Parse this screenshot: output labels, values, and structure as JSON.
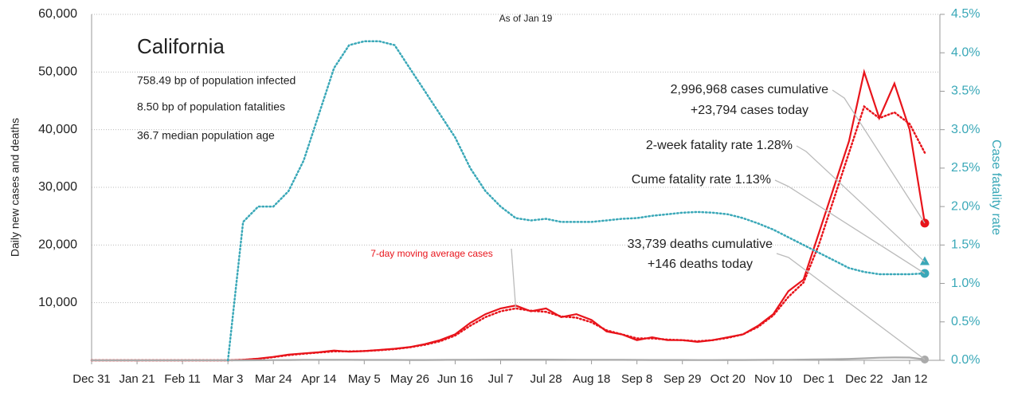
{
  "chart_data": {
    "type": "line",
    "title": "California",
    "subtitle": "As of Jan 19",
    "facts": [
      "758.49 bp of population infected",
      "8.50 bp of population fatalities",
      "36.7 median population age"
    ],
    "ylabel": "Daily new cases and deaths",
    "y2label": "Case fatality rate",
    "categories": [
      "Dec 31",
      null,
      null,
      "Jan 21",
      null,
      null,
      "Feb 11",
      null,
      null,
      "Mar 3",
      null,
      null,
      "Mar 24",
      null,
      null,
      "Apr 14",
      null,
      null,
      "May 5",
      null,
      null,
      "May 26",
      null,
      null,
      "Jun 16",
      null,
      null,
      "Jul 7",
      null,
      null,
      "Jul 28",
      null,
      null,
      "Aug 18",
      null,
      null,
      "Sep 8",
      null,
      null,
      "Sep 29",
      null,
      null,
      "Oct 20",
      null,
      null,
      "Nov 10",
      null,
      null,
      "Dec 1",
      null,
      null,
      "Dec 22",
      null,
      null,
      "Jan 12",
      null
    ],
    "series": [
      {
        "name": "Daily new cases",
        "color": "#e8141b",
        "style": "solid",
        "values": [
          0,
          0,
          0,
          0,
          0,
          0,
          0,
          0,
          0,
          0,
          100,
          300,
          600,
          1000,
          1200,
          1400,
          1700,
          1500,
          1600,
          1800,
          2000,
          2300,
          2800,
          3500,
          4500,
          6500,
          8000,
          9000,
          9500,
          8500,
          9000,
          7500,
          8000,
          7000,
          5000,
          4500,
          3500,
          4000,
          3500,
          3500,
          3200,
          3500,
          4000,
          4500,
          6000,
          8000,
          12000,
          14000,
          22000,
          30000,
          38000,
          50000,
          42000,
          48000,
          40000,
          23794
        ]
      },
      {
        "name": "7-day moving average cases",
        "color": "#e8141b",
        "style": "dotted",
        "values": [
          0,
          0,
          0,
          0,
          0,
          0,
          0,
          0,
          0,
          0,
          80,
          250,
          550,
          900,
          1150,
          1350,
          1550,
          1550,
          1600,
          1750,
          1950,
          2250,
          2700,
          3300,
          4300,
          6000,
          7500,
          8500,
          9000,
          8600,
          8400,
          7600,
          7400,
          6600,
          5200,
          4500,
          3800,
          3800,
          3600,
          3500,
          3300,
          3500,
          3900,
          4500,
          5800,
          7800,
          11000,
          13500,
          20000,
          28000,
          36000,
          44000,
          42000,
          43000,
          41000,
          36000
        ]
      },
      {
        "name": "Daily deaths",
        "color": "#aaaaaa",
        "style": "solid",
        "values": [
          0,
          0,
          0,
          0,
          0,
          0,
          0,
          0,
          0,
          0,
          5,
          20,
          40,
          60,
          80,
          90,
          90,
          80,
          70,
          70,
          70,
          60,
          60,
          70,
          90,
          100,
          110,
          120,
          130,
          130,
          120,
          110,
          100,
          100,
          90,
          80,
          70,
          60,
          50,
          50,
          40,
          40,
          50,
          60,
          70,
          80,
          100,
          120,
          150,
          200,
          250,
          350,
          450,
          500,
          480,
          146
        ]
      },
      {
        "name": "Case fatality rate",
        "color": "#3aa8b8",
        "style": "dotted",
        "axis": "y2",
        "values": [
          null,
          null,
          null,
          null,
          null,
          null,
          null,
          null,
          null,
          0,
          1.8,
          2.0,
          2.0,
          2.2,
          2.6,
          3.2,
          3.8,
          4.1,
          4.15,
          4.15,
          4.1,
          3.8,
          3.5,
          3.2,
          2.9,
          2.5,
          2.2,
          2.0,
          1.85,
          1.82,
          1.84,
          1.8,
          1.8,
          1.8,
          1.82,
          1.84,
          1.85,
          1.88,
          1.9,
          1.92,
          1.93,
          1.92,
          1.9,
          1.85,
          1.78,
          1.7,
          1.6,
          1.5,
          1.4,
          1.3,
          1.2,
          1.15,
          1.12,
          1.12,
          1.12,
          1.13
        ]
      }
    ],
    "two_week_fatality_rate": 1.28,
    "annotations": [
      "2,996,968 cases cumulative",
      "+23,794 cases today",
      "2-week fatality rate 1.28%",
      "Cume fatality rate 1.13%",
      "33,739 deaths cumulative",
      "+146 deaths today",
      "7-day moving average cases"
    ],
    "ylim": [
      0,
      60000
    ],
    "yticks": [
      {
        "value": 10000,
        "label": "10,000"
      },
      {
        "value": 20000,
        "label": "20,000"
      },
      {
        "value": 30000,
        "label": "30,000"
      },
      {
        "value": 40000,
        "label": "40,000"
      },
      {
        "value": 50000,
        "label": "50,000"
      },
      {
        "value": 60000,
        "label": "60,000"
      }
    ],
    "y2lim": [
      0,
      4.5
    ],
    "y2ticks": [
      {
        "value": 0,
        "label": "0.0%"
      },
      {
        "value": 0.5,
        "label": "0.5%"
      },
      {
        "value": 1,
        "label": "1.0%"
      },
      {
        "value": 1.5,
        "label": "1.5%"
      },
      {
        "value": 2,
        "label": "2.0%"
      },
      {
        "value": 2.5,
        "label": "2.5%"
      },
      {
        "value": 3,
        "label": "3.0%"
      },
      {
        "value": 3.5,
        "label": "3.5%"
      },
      {
        "value": 4,
        "label": "4.0%"
      },
      {
        "value": 4.5,
        "label": "4.5%"
      }
    ],
    "grid": true
  }
}
